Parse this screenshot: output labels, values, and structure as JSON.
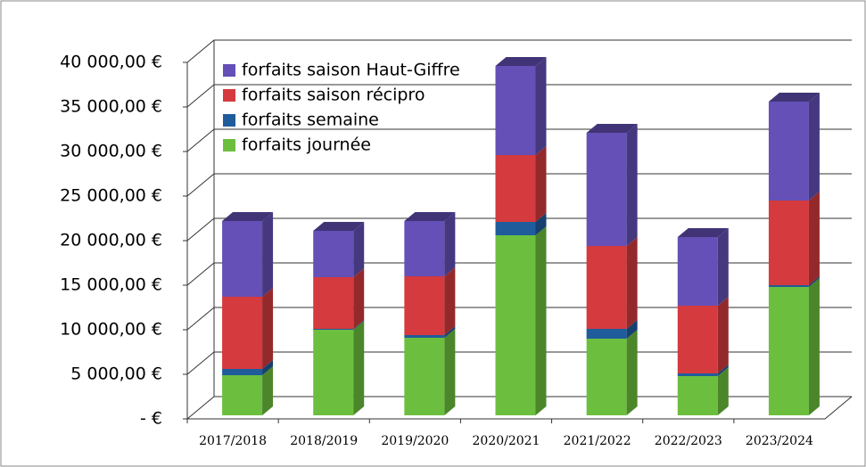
{
  "chart_data": {
    "type": "bar",
    "stacked": true,
    "categories": [
      "2017/2018",
      "2018/2019",
      "2019/2020",
      "2020/2021",
      "2021/2022",
      "2022/2023",
      "2023/2024"
    ],
    "series": [
      {
        "name": "forfaits journée",
        "color": "#6cbf3e",
        "values": [
          4500,
          9600,
          8700,
          20200,
          8600,
          4400,
          14400
        ]
      },
      {
        "name": "forfaits semaine",
        "color": "#1f5c9c",
        "values": [
          700,
          100,
          300,
          1500,
          1100,
          300,
          200
        ]
      },
      {
        "name": "forfaits saison récipro",
        "color": "#d43a3e",
        "values": [
          8100,
          5800,
          6600,
          7500,
          9300,
          7600,
          9500
        ]
      },
      {
        "name": "forfaits saison Haut-Giffre",
        "color": "#6450b6",
        "values": [
          8500,
          5200,
          6200,
          10000,
          12700,
          7700,
          11100
        ]
      }
    ],
    "ylim": [
      0,
      40000
    ],
    "yticks": [
      {
        "value": 0,
        "label": "-   €"
      },
      {
        "value": 5000,
        "label": "5 000,00 €"
      },
      {
        "value": 10000,
        "label": "10 000,00 €"
      },
      {
        "value": 15000,
        "label": "15 000,00 €"
      },
      {
        "value": 20000,
        "label": "20 000,00 €"
      },
      {
        "value": 25000,
        "label": "25 000,00 €"
      },
      {
        "value": 30000,
        "label": "30 000,00 €"
      },
      {
        "value": 35000,
        "label": "35 000,00 €"
      },
      {
        "value": 40000,
        "label": "40 000,00 €"
      }
    ],
    "grid": true,
    "legend": "top-left"
  }
}
